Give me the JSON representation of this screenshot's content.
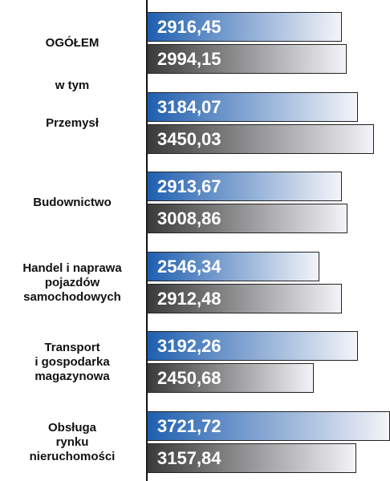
{
  "chart_data": {
    "type": "bar",
    "orientation": "horizontal",
    "annotations": [
      "w tym"
    ],
    "categories": [
      "OGÓŁEM",
      "Przemysł",
      "Budownictwo",
      "Handel i naprawa\npojazdów\nsamochodowych",
      "Transport\ni gospodarka\nmagazynowa",
      "Obsługa\nrynku\nnieruchomości"
    ],
    "series": [
      {
        "color": "#1f5fb0",
        "values": [
          2916.45,
          3184.07,
          2913.67,
          2546.34,
          3192.26,
          3721.72
        ],
        "value_labels": [
          "2916,45",
          "3184,07",
          "2913,67",
          "2546,34",
          "3192,26",
          "3721,72"
        ]
      },
      {
        "color": "#3a3a3a",
        "values": [
          2994.15,
          3450.03,
          3008.86,
          2912.48,
          2450.68,
          3157.84
        ],
        "value_labels": [
          "2994,15",
          "3450,03",
          "3008,86",
          "2912,48",
          "2450,68",
          "3157,84"
        ]
      }
    ]
  }
}
